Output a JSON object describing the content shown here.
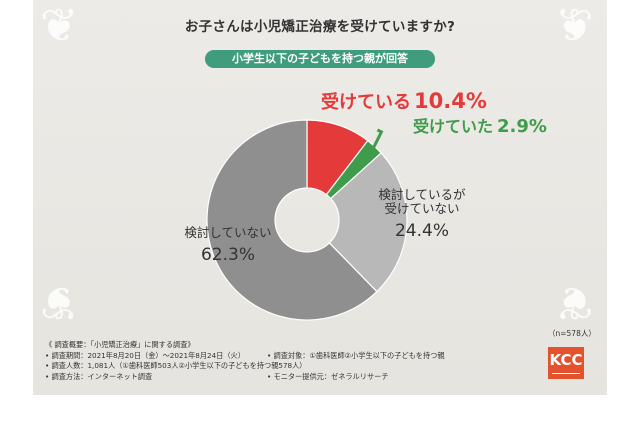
{
  "chart_data": {
    "type": "pie",
    "title": "お子さんは小児矯正治療を受けていますか?",
    "subtitle": "小学生以下の子どもを持つ親が回答",
    "note": "（n=578人）",
    "slices": [
      {
        "label": "受けている",
        "value": 10.4,
        "value_text": "10.4%",
        "color": "#e53a3a"
      },
      {
        "label": "受けていた",
        "value": 2.9,
        "value_text": "2.9%",
        "color": "#3f9c4a"
      },
      {
        "label_line1": "検討しているが",
        "label_line2": "受けていない",
        "value": 24.4,
        "value_text": "24.4%",
        "color": "#b8b8b8"
      },
      {
        "label": "検討していない",
        "value": 62.3,
        "value_text": "62.3%",
        "color": "#8f8f8f"
      }
    ]
  },
  "survey": {
    "heading": "《 調査概要：「小児矯正治療」に関する調査》",
    "period": "• 調査期間：2021年8月20日（金）～2021年8月24日（火）",
    "target": "• 調査対象：①歯科医師②小学生以下の子どもを持つ親",
    "count": "• 調査人数：1,081人（①歯科医師503人②小学生以下の子どもを持つ親578人）",
    "method": "• 調査方法：インターネット調査",
    "provider": "• モニター提供元：ゼネラルリサーチ"
  },
  "logo_text": "KCC"
}
